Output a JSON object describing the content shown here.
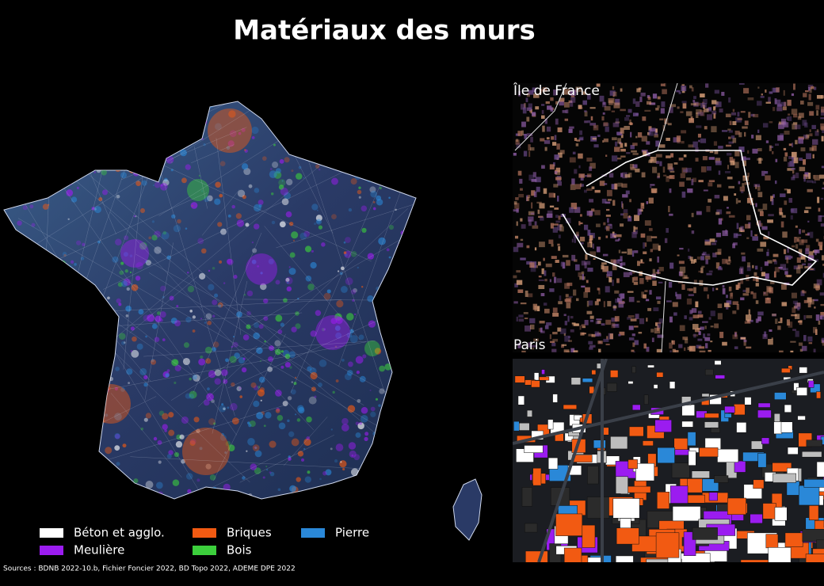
{
  "title": "Matériaux des murs",
  "legend": [
    {
      "name": "Béton et agglo.",
      "color": "#ffffff"
    },
    {
      "name": "Briques",
      "color": "#f25a12"
    },
    {
      "name": "Pierre",
      "color": "#2a88d8"
    },
    {
      "name": "Meulière",
      "color": "#9b1cf0"
    },
    {
      "name": "Bois",
      "color": "#3ccf3c"
    }
  ],
  "insets": [
    {
      "label": "Île de France"
    },
    {
      "label": "Paris"
    }
  ],
  "sources": "Sources : BDNB 2022-10.b, Fichier Foncier 2022, BD Topo 2022, ADEME DPE 2022"
}
